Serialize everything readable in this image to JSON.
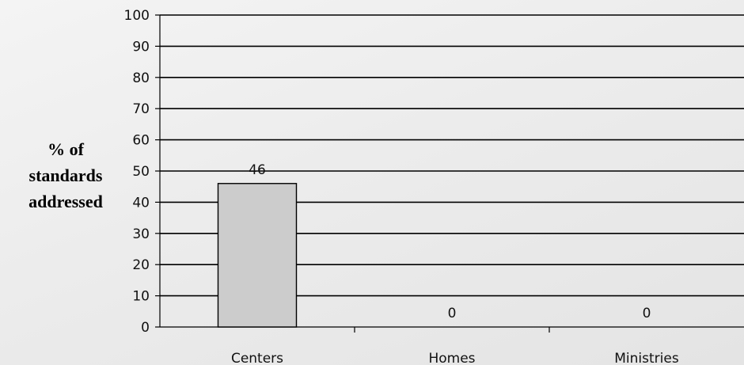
{
  "chart_data": {
    "type": "bar",
    "categories": [
      "Centers",
      "Homes",
      "Ministries"
    ],
    "values": [
      46,
      0,
      0
    ],
    "data_labels": [
      "46",
      "0",
      "0"
    ],
    "ylabel_lines": [
      "% of",
      "standards",
      "addressed"
    ],
    "xlabel": "",
    "title": "",
    "ylim": [
      0,
      100
    ],
    "yticks": [
      0,
      10,
      20,
      30,
      40,
      50,
      60,
      70,
      80,
      90,
      100
    ],
    "grid": true,
    "legend": "none",
    "colors": {
      "bar_fill": "#cccccc",
      "bar_stroke": "#000000",
      "gridline": "#000000",
      "axis": "#000000"
    }
  }
}
